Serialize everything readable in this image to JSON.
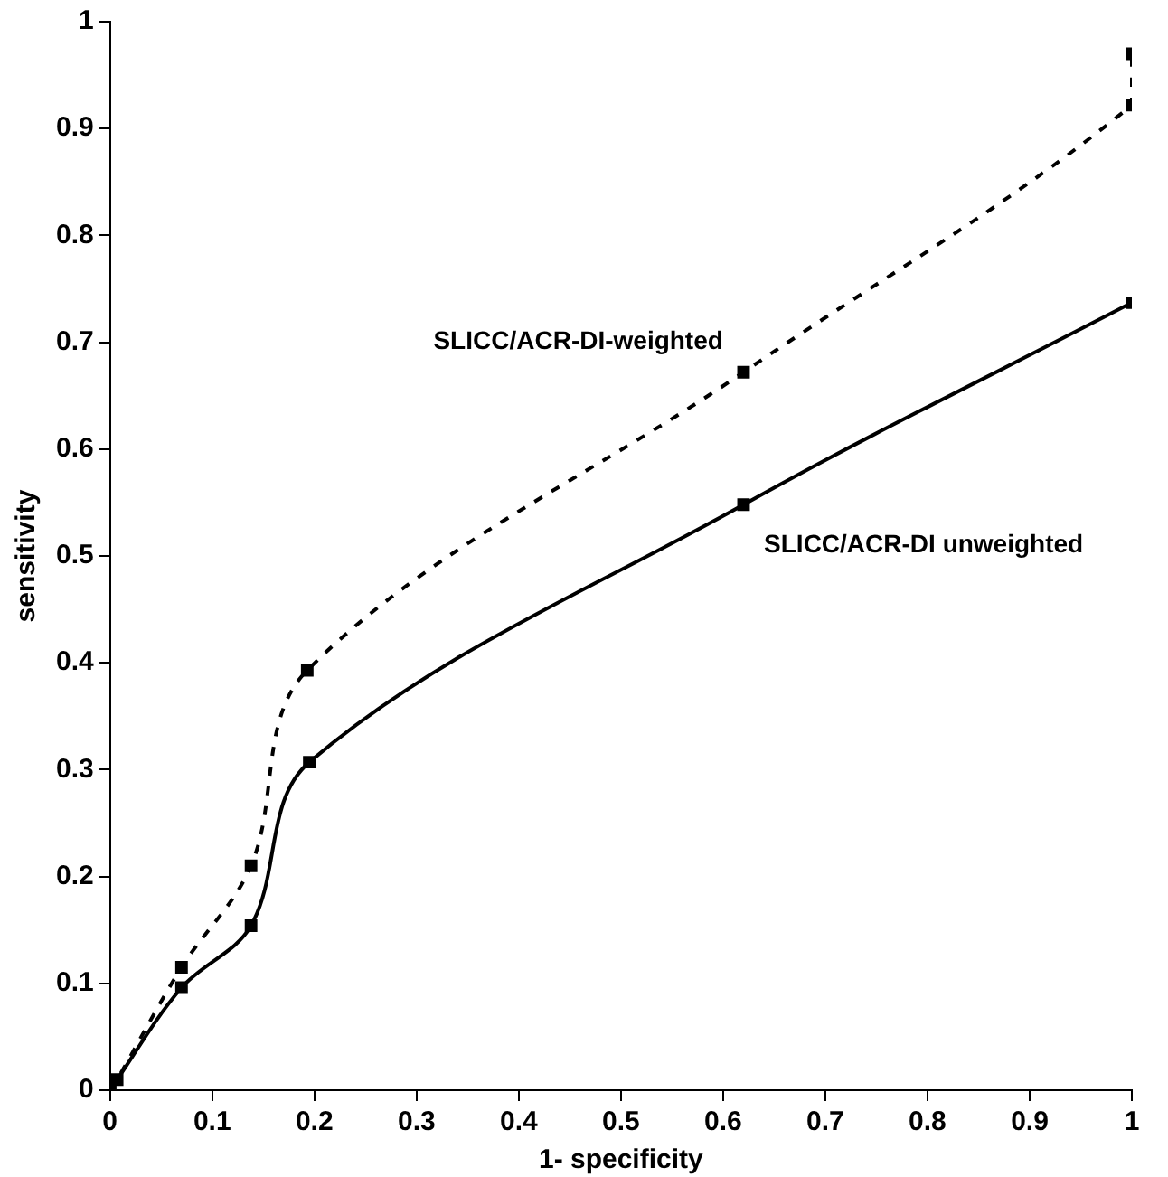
{
  "chart_data": {
    "type": "line",
    "xlabel": "1- specificity",
    "ylabel": "sensitivity",
    "xlim": [
      0,
      1
    ],
    "ylim": [
      0,
      1
    ],
    "xticks": [
      0,
      0.1,
      0.2,
      0.3,
      0.4,
      0.5,
      0.6,
      0.7,
      0.8,
      0.9,
      1
    ],
    "yticks": [
      0,
      0.1,
      0.2,
      0.3,
      0.4,
      0.5,
      0.6,
      0.7,
      0.8,
      0.9,
      1
    ],
    "grid": false,
    "legend": false,
    "marker": "square",
    "series": [
      {
        "name": "SLICC/ACR-DI-weighted",
        "color": "#000000",
        "line_style": "dashed",
        "x": [
          0,
          0.007,
          0.07,
          0.138,
          0.193,
          0.62,
          1,
          1
        ],
        "values": [
          0,
          0.01,
          0.115,
          0.21,
          0.393,
          0.672,
          0.922,
          0.97
        ]
      },
      {
        "name": "SLICC/ACR-DI unweighted",
        "color": "#000000",
        "line_style": "solid",
        "x": [
          0,
          0.007,
          0.07,
          0.138,
          0.195,
          0.62,
          1
        ],
        "values": [
          0,
          null,
          0.096,
          0.154,
          0.307,
          0.548,
          0.737
        ]
      }
    ]
  }
}
